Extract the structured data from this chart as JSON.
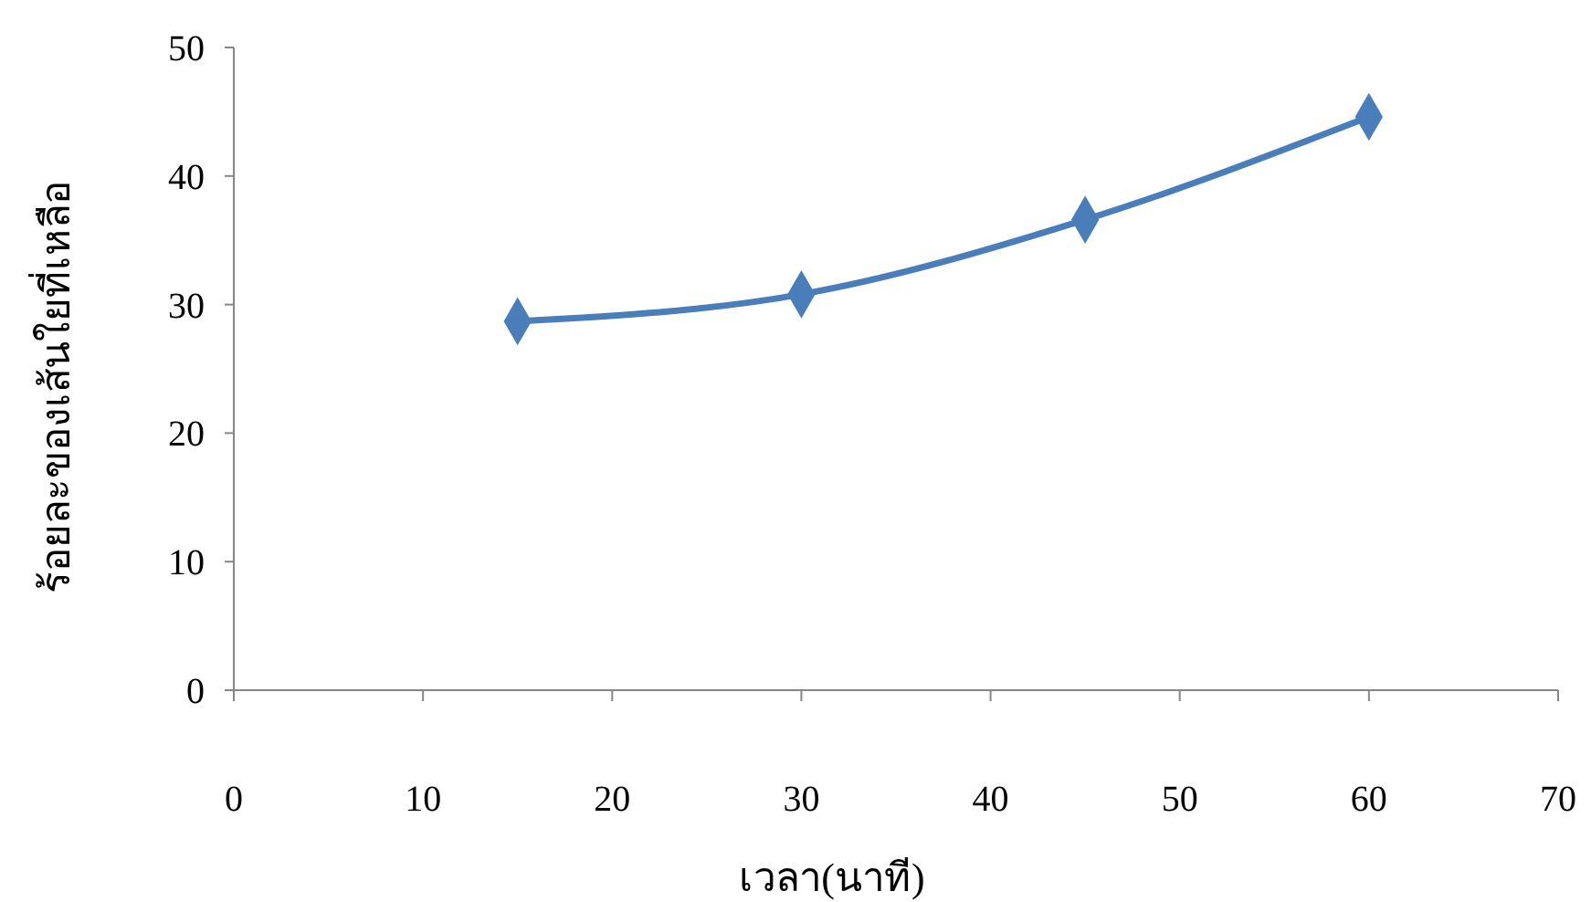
{
  "chart_data": {
    "type": "line",
    "xlabel": "เวลา(นาที)",
    "ylabel": "ร้อยละของเส้นใยที่เหลือ",
    "x": [
      15,
      30,
      45,
      60
    ],
    "series": [
      {
        "color": "#4a7ebb",
        "values": [
          28.7,
          30.8,
          36.6,
          44.6
        ]
      }
    ],
    "xlim": [
      0,
      70
    ],
    "xticks": [
      0,
      10,
      20,
      30,
      40,
      50,
      60,
      70
    ],
    "ylim": [
      0,
      50
    ],
    "yticks": [
      0,
      10,
      20,
      30,
      40,
      50
    ],
    "grid": false,
    "marker": "diamond",
    "line_style": "solid"
  }
}
